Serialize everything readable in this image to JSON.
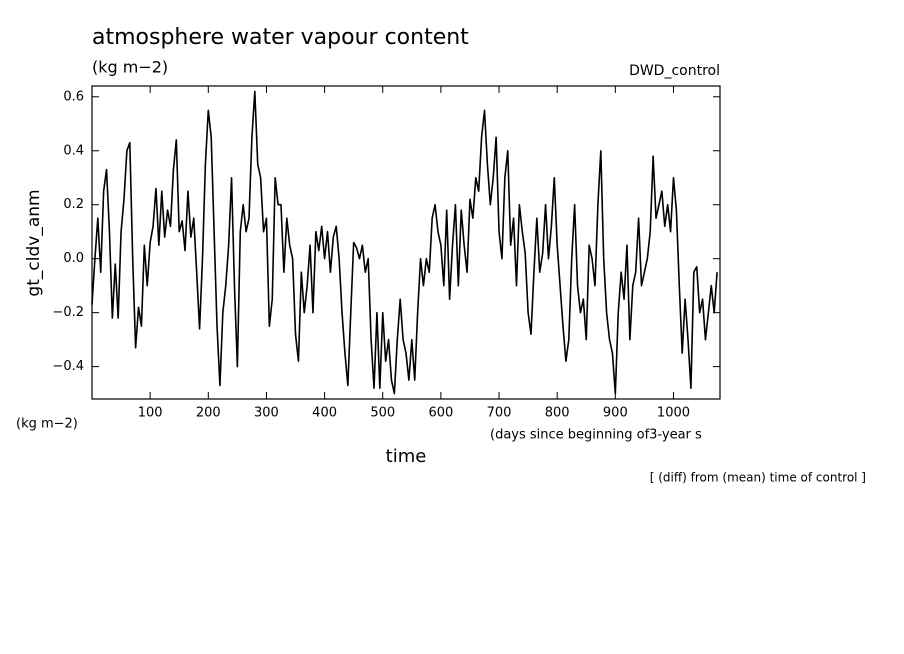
{
  "chart_data": {
    "type": "line",
    "title": "atmosphere water vapour content",
    "subtitle": "(kg m−2)",
    "run_label": "DWD_control",
    "y_label": "gt_cldv_anm",
    "y_unit": "(kg m−2)",
    "x_unit": "(days since beginning of3-year s",
    "x_label": "time",
    "note": "[ (diff) from (mean) time of control ]",
    "xlim": [
      0,
      1080
    ],
    "ylim": [
      -0.52,
      0.64
    ],
    "xticks": [
      100,
      200,
      300,
      400,
      500,
      600,
      700,
      800,
      900,
      1000
    ],
    "yticks": [
      {
        "value": -0.4,
        "label": "−0.4"
      },
      {
        "value": -0.2,
        "label": "−0.2"
      },
      {
        "value": 0,
        "label": "0.0"
      },
      0.2,
      0.4,
      0.6
    ],
    "x": [
      0,
      5,
      10,
      15,
      20,
      25,
      30,
      35,
      40,
      45,
      50,
      55,
      60,
      65,
      70,
      75,
      80,
      85,
      90,
      95,
      100,
      105,
      110,
      115,
      120,
      125,
      130,
      135,
      140,
      145,
      150,
      155,
      160,
      165,
      170,
      175,
      180,
      185,
      190,
      195,
      200,
      205,
      210,
      215,
      220,
      225,
      230,
      235,
      240,
      245,
      250,
      255,
      260,
      265,
      270,
      275,
      280,
      285,
      290,
      295,
      300,
      305,
      310,
      315,
      320,
      325,
      330,
      335,
      340,
      345,
      350,
      355,
      360,
      365,
      370,
      375,
      380,
      385,
      390,
      395,
      400,
      405,
      410,
      415,
      420,
      425,
      430,
      435,
      440,
      445,
      450,
      455,
      460,
      465,
      470,
      475,
      480,
      485,
      490,
      495,
      500,
      505,
      510,
      515,
      520,
      525,
      530,
      535,
      540,
      545,
      550,
      555,
      560,
      565,
      570,
      575,
      580,
      585,
      590,
      595,
      600,
      605,
      610,
      615,
      620,
      625,
      630,
      635,
      640,
      645,
      650,
      655,
      660,
      665,
      670,
      675,
      680,
      685,
      690,
      695,
      700,
      705,
      710,
      715,
      720,
      725,
      730,
      735,
      740,
      745,
      750,
      755,
      760,
      765,
      770,
      775,
      780,
      785,
      790,
      795,
      800,
      805,
      810,
      815,
      820,
      825,
      830,
      835,
      840,
      845,
      850,
      855,
      860,
      865,
      870,
      875,
      880,
      885,
      890,
      895,
      900,
      905,
      910,
      915,
      920,
      925,
      930,
      935,
      940,
      945,
      950,
      955,
      960,
      965,
      970,
      975,
      980,
      985,
      990,
      995,
      1000,
      1005,
      1010,
      1015,
      1020,
      1025,
      1030,
      1035,
      1040,
      1045,
      1050,
      1055,
      1060,
      1065,
      1070,
      1075
    ],
    "series": [
      {
        "color": "#000000",
        "values": [
          -0.17,
          0.0,
          0.15,
          -0.05,
          0.25,
          0.33,
          0.1,
          -0.22,
          -0.02,
          -0.22,
          0.1,
          0.22,
          0.4,
          0.43,
          0.0,
          -0.33,
          -0.18,
          -0.25,
          0.05,
          -0.1,
          0.06,
          0.12,
          0.26,
          0.05,
          0.25,
          0.08,
          0.18,
          0.12,
          0.33,
          0.44,
          0.1,
          0.14,
          0.03,
          0.25,
          0.08,
          0.15,
          -0.05,
          -0.26,
          0.0,
          0.35,
          0.55,
          0.45,
          0.1,
          -0.25,
          -0.47,
          -0.2,
          -0.1,
          0.05,
          0.3,
          -0.1,
          -0.4,
          0.1,
          0.2,
          0.1,
          0.15,
          0.45,
          0.62,
          0.35,
          0.3,
          0.1,
          0.15,
          -0.25,
          -0.15,
          0.3,
          0.2,
          0.2,
          -0.05,
          0.15,
          0.05,
          0.0,
          -0.28,
          -0.38,
          -0.05,
          -0.2,
          -0.1,
          0.05,
          -0.2,
          0.1,
          0.03,
          0.12,
          0.0,
          0.1,
          -0.05,
          0.08,
          0.12,
          0.0,
          -0.2,
          -0.35,
          -0.47,
          -0.2,
          0.06,
          0.04,
          0.0,
          0.05,
          -0.05,
          0.0,
          -0.3,
          -0.48,
          -0.2,
          -0.48,
          -0.2,
          -0.38,
          -0.3,
          -0.45,
          -0.5,
          -0.3,
          -0.15,
          -0.3,
          -0.35,
          -0.45,
          -0.3,
          -0.45,
          -0.2,
          0.0,
          -0.1,
          0.0,
          -0.05,
          0.15,
          0.2,
          0.1,
          0.05,
          -0.1,
          0.18,
          -0.15,
          0.05,
          0.2,
          -0.1,
          0.18,
          0.05,
          -0.05,
          0.22,
          0.15,
          0.3,
          0.25,
          0.45,
          0.55,
          0.35,
          0.2,
          0.3,
          0.45,
          0.1,
          0.0,
          0.3,
          0.4,
          0.05,
          0.15,
          -0.1,
          0.2,
          0.1,
          0.02,
          -0.2,
          -0.28,
          -0.05,
          0.15,
          -0.05,
          0.02,
          0.2,
          0.0,
          0.12,
          0.3,
          0.05,
          -0.1,
          -0.25,
          -0.38,
          -0.3,
          0.0,
          0.2,
          -0.1,
          -0.2,
          -0.15,
          -0.3,
          0.05,
          0.0,
          -0.1,
          0.2,
          0.4,
          0.0,
          -0.2,
          -0.3,
          -0.35,
          -0.5,
          -0.2,
          -0.05,
          -0.15,
          0.05,
          -0.3,
          -0.1,
          -0.05,
          0.15,
          -0.1,
          -0.05,
          0.0,
          0.1,
          0.38,
          0.15,
          0.2,
          0.25,
          0.12,
          0.2,
          0.1,
          0.3,
          0.18,
          -0.1,
          -0.35,
          -0.15,
          -0.3,
          -0.48,
          -0.05,
          -0.03,
          -0.2,
          -0.15,
          -0.3,
          -0.2,
          -0.1,
          -0.2,
          -0.05
        ]
      }
    ]
  }
}
